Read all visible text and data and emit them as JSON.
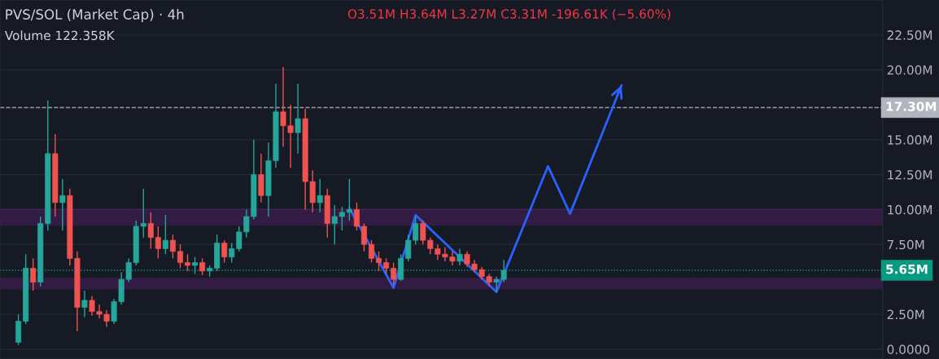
{
  "chart_data": {
    "type": "candlestick",
    "title": "PVS/SOL (Market Cap) · 4h",
    "annotations": [
      "O3.51M H3.64M L3.27M C3.31M -196.61K (−5.60%)",
      "Volume 122.358K"
    ],
    "categories": [
      null,
      null,
      null,
      null,
      null,
      null,
      null,
      null,
      null,
      null,
      null,
      null,
      null,
      null,
      null,
      null,
      null,
      null,
      null,
      null,
      null,
      null,
      null,
      null,
      null,
      null,
      null,
      null,
      null,
      null,
      null,
      null,
      null,
      null,
      null,
      null,
      null,
      null,
      null,
      null,
      null,
      null,
      null,
      null,
      null,
      null,
      null,
      null,
      null,
      null,
      null,
      null,
      null,
      null,
      null,
      null,
      null,
      null,
      null,
      null,
      null,
      null,
      null,
      null,
      null,
      null,
      null,
      null,
      null,
      null,
      null,
      null,
      null,
      null,
      null,
      null,
      null,
      null,
      null,
      null,
      null,
      null,
      null,
      null,
      null,
      null,
      null,
      null,
      null,
      null,
      null,
      null,
      null,
      null,
      null,
      null,
      null,
      null,
      null,
      null,
      null,
      null,
      null,
      null,
      null,
      null,
      null,
      null,
      null,
      null,
      null,
      null,
      null,
      null,
      null,
      null,
      null,
      null,
      null,
      null
    ],
    "ohlc": [
      null,
      null,
      [
        0.5,
        2.5,
        0.3,
        2.0
      ],
      [
        2.0,
        6.8,
        1.8,
        5.8
      ],
      [
        5.8,
        6.5,
        4.2,
        4.8
      ],
      [
        4.8,
        9.5,
        4.5,
        9.0
      ],
      [
        9.0,
        17.8,
        8.5,
        14.0
      ],
      [
        14.0,
        15.4,
        9.5,
        10.5
      ],
      [
        10.5,
        12.2,
        8.5,
        11.0
      ],
      [
        11.0,
        11.5,
        6.0,
        6.5
      ],
      [
        6.5,
        7.0,
        1.3,
        3.0
      ],
      [
        3.0,
        4.2,
        2.3,
        3.5
      ],
      [
        3.5,
        3.8,
        2.4,
        2.7
      ],
      [
        2.7,
        3.2,
        2.2,
        2.5
      ],
      [
        2.5,
        2.8,
        1.6,
        2.0
      ],
      [
        2.0,
        3.6,
        1.8,
        3.4
      ],
      [
        3.4,
        5.5,
        3.2,
        5.0
      ],
      [
        5.0,
        6.5,
        4.8,
        6.2
      ],
      [
        6.2,
        9.2,
        6.0,
        8.8
      ],
      [
        8.8,
        11.5,
        8.0,
        9.0
      ],
      [
        9.0,
        9.8,
        7.2,
        8.0
      ],
      [
        8.0,
        8.8,
        6.5,
        7.2
      ],
      [
        7.2,
        9.6,
        6.8,
        7.8
      ],
      [
        7.8,
        8.2,
        6.5,
        7.0
      ],
      [
        7.0,
        7.5,
        5.8,
        6.2
      ],
      [
        6.2,
        6.8,
        5.6,
        6.0
      ],
      [
        6.0,
        6.6,
        5.4,
        6.2
      ],
      [
        6.2,
        6.5,
        5.3,
        5.6
      ],
      [
        5.6,
        6.0,
        5.2,
        5.8
      ],
      [
        5.8,
        8.2,
        5.6,
        7.6
      ],
      [
        7.6,
        7.8,
        6.2,
        6.6
      ],
      [
        6.6,
        7.6,
        6.2,
        7.2
      ],
      [
        7.2,
        8.8,
        7.0,
        8.4
      ],
      [
        8.4,
        10.0,
        8.0,
        9.5
      ],
      [
        9.5,
        15.0,
        9.3,
        12.5
      ],
      [
        12.5,
        14.0,
        10.5,
        11.0
      ],
      [
        11.0,
        14.8,
        9.5,
        13.5
      ],
      [
        13.5,
        19.0,
        13.0,
        17.0
      ],
      [
        17.0,
        20.2,
        14.5,
        16.0
      ],
      [
        16.0,
        17.5,
        13.0,
        15.5
      ],
      [
        15.5,
        19.0,
        14.0,
        16.5
      ],
      [
        16.5,
        17.2,
        10.0,
        12.0
      ],
      [
        12.0,
        12.8,
        9.8,
        10.5
      ],
      [
        10.5,
        12.2,
        9.8,
        11.0
      ],
      [
        11.0,
        11.5,
        8.0,
        9.0
      ],
      [
        9.0,
        10.3,
        7.5,
        9.5
      ],
      [
        9.5,
        10.2,
        8.5,
        9.8
      ],
      [
        9.8,
        12.2,
        9.2,
        10.0
      ],
      [
        10.0,
        10.5,
        8.5,
        8.8
      ],
      [
        8.8,
        9.0,
        7.0,
        7.5
      ],
      [
        7.5,
        7.8,
        6.2,
        6.5
      ],
      [
        6.5,
        7.0,
        5.6,
        6.2
      ],
      [
        6.2,
        6.5,
        5.4,
        5.8
      ],
      [
        5.8,
        6.2,
        4.6,
        5.0
      ],
      [
        5.0,
        6.8,
        4.9,
        6.5
      ],
      [
        6.5,
        8.2,
        6.3,
        7.8
      ],
      [
        7.8,
        9.5,
        7.5,
        9.0
      ],
      [
        9.0,
        9.2,
        7.5,
        7.8
      ],
      [
        7.8,
        8.0,
        6.8,
        7.2
      ],
      [
        7.2,
        7.5,
        6.4,
        6.8
      ],
      [
        6.8,
        7.3,
        6.3,
        6.6
      ],
      [
        6.6,
        7.0,
        6.0,
        6.3
      ],
      [
        6.3,
        7.2,
        6.0,
        6.8
      ],
      [
        6.8,
        7.0,
        5.9,
        6.1
      ],
      [
        6.1,
        6.4,
        5.5,
        5.7
      ],
      [
        5.7,
        5.9,
        5.0,
        5.2
      ],
      [
        5.2,
        5.4,
        4.5,
        4.8
      ],
      [
        4.8,
        5.2,
        4.1,
        5.0
      ],
      [
        5.0,
        6.4,
        4.8,
        5.65
      ],
      null,
      null,
      null,
      null,
      null,
      null,
      null,
      null,
      null,
      null,
      null,
      null,
      null,
      null,
      null,
      null,
      null,
      null,
      null,
      null,
      null,
      null,
      null,
      null,
      null,
      null,
      null,
      null,
      null,
      null,
      null,
      null,
      null,
      null,
      null,
      null,
      null,
      null,
      null,
      null,
      null,
      null,
      null,
      null,
      null,
      null,
      null,
      null,
      null,
      null,
      null
    ],
    "series": [
      {
        "type": "line",
        "color": "#2962ff",
        "values": [
          null,
          null,
          null,
          null,
          null,
          null,
          null,
          null,
          null,
          null,
          null,
          null,
          null,
          null,
          null,
          null,
          null,
          null,
          null,
          null,
          null,
          null,
          null,
          null,
          null,
          null,
          null,
          null,
          null,
          null,
          null,
          null,
          null,
          null,
          null,
          null,
          null,
          null,
          null,
          null,
          null,
          null,
          null,
          null,
          null,
          null,
          null,
          10.1,
          null,
          null,
          null,
          null,
          null,
          4.4,
          null,
          null,
          9.6,
          null,
          null,
          null,
          null,
          null,
          null,
          null,
          null,
          null,
          null,
          4.1,
          null,
          null,
          null,
          null,
          null,
          null,
          13.1,
          null,
          null,
          9.7,
          null,
          null,
          null,
          null,
          null,
          null,
          18.9,
          null,
          null,
          null,
          null,
          null,
          null,
          null,
          null,
          null,
          null,
          null,
          null,
          null,
          null,
          null,
          null,
          null,
          null,
          null,
          null,
          null,
          null,
          null,
          null,
          null,
          null,
          null,
          null,
          null,
          null,
          null,
          null,
          null,
          null,
          null
        ]
      }
    ],
    "bands": [
      {
        "axis": "y",
        "from": 8.9,
        "to": 10.0,
        "color": "#9c27b0"
      },
      {
        "axis": "y",
        "from": 4.35,
        "to": 5.05,
        "color": "#9c27b0"
      }
    ],
    "ref_lines": [
      {
        "axis": "y",
        "value": 17.3,
        "label": "17.30M",
        "color": "#b2b5be",
        "line_style": "dashed"
      },
      {
        "axis": "y",
        "value": 5.65,
        "label": "5.65M",
        "color": "#089981",
        "line_style": "dotted"
      }
    ],
    "ylim": [
      -0.7,
      25.0
    ],
    "yticks": [
      {
        "value": 0,
        "label": "0.0000"
      },
      {
        "value": 2.5,
        "label": "2.50M"
      },
      {
        "value": 7.5,
        "label": "7.50M"
      },
      {
        "value": 10,
        "label": "10.00M"
      },
      {
        "value": 12.5,
        "label": "12.50M"
      },
      {
        "value": 15,
        "label": "15.00M"
      },
      {
        "value": 20,
        "label": "20.00M"
      },
      {
        "value": 22.5,
        "label": "22.50M"
      }
    ],
    "grid": "y",
    "tick_labels": "y"
  }
}
